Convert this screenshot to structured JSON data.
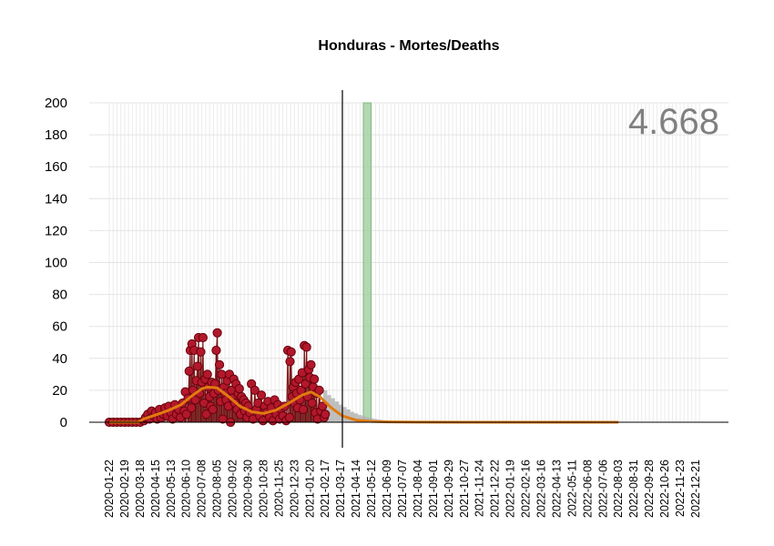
{
  "chart_data": {
    "type": "line",
    "title": "Honduras - Mortes/Deaths",
    "total_label": "4.668",
    "xlabel": "",
    "ylabel": "",
    "ylim": [
      0,
      200
    ],
    "yticks": [
      0,
      20,
      40,
      60,
      80,
      100,
      120,
      140,
      160,
      180,
      200
    ],
    "x_start": "2020-01-22",
    "x_end": "2022-12-31",
    "x_tick_labels": [
      "2020-01-22",
      "2020-02-19",
      "2020-03-18",
      "2020-04-15",
      "2020-05-13",
      "2020-06-10",
      "2020-07-08",
      "2020-08-05",
      "2020-09-02",
      "2020-09-30",
      "2020-10-28",
      "2020-11-25",
      "2020-12-23",
      "2021-01-20",
      "2021-02-17",
      "2021-03-17",
      "2021-04-14",
      "2021-05-12",
      "2021-06-09",
      "2021-07-07",
      "2021-08-04",
      "2021-09-01",
      "2021-09-29",
      "2021-10-27",
      "2021-11-24",
      "2021-12-22",
      "2022-01-19",
      "2022-02-16",
      "2022-03-16",
      "2022-04-13",
      "2022-05-11",
      "2022-06-08",
      "2022-07-06",
      "2022-08-03",
      "2022-08-31",
      "2022-09-28",
      "2022-10-26",
      "2022-11-23",
      "2022-12-21"
    ],
    "grid": true,
    "vertical_line_date": "2021-03-20",
    "highlight_band": [
      "2021-04-27",
      "2021-05-11"
    ],
    "colors": {
      "points": "#b2182b",
      "point_edge": "#67000d",
      "smooth": "#e07b10",
      "forecast": "#b0b0b0",
      "band": "#a7d0a7",
      "vline": "#000000",
      "grid": "#ebebeb",
      "total": "#808080"
    },
    "series": [
      {
        "role": "daily deaths",
        "points": [
          [
            "2020-01-22",
            0
          ],
          [
            "2020-01-29",
            0
          ],
          [
            "2020-02-05",
            0
          ],
          [
            "2020-02-12",
            0
          ],
          [
            "2020-02-19",
            0
          ],
          [
            "2020-02-26",
            0
          ],
          [
            "2020-03-04",
            0
          ],
          [
            "2020-03-11",
            0
          ],
          [
            "2020-03-18",
            0
          ],
          [
            "2020-03-25",
            1
          ],
          [
            "2020-03-28",
            3
          ],
          [
            "2020-04-01",
            5
          ],
          [
            "2020-04-04",
            2
          ],
          [
            "2020-04-08",
            7
          ],
          [
            "2020-04-12",
            4
          ],
          [
            "2020-04-15",
            6
          ],
          [
            "2020-04-18",
            2
          ],
          [
            "2020-04-22",
            8
          ],
          [
            "2020-04-25",
            3
          ],
          [
            "2020-04-29",
            5
          ],
          [
            "2020-05-02",
            9
          ],
          [
            "2020-05-06",
            4
          ],
          [
            "2020-05-09",
            10
          ],
          [
            "2020-05-13",
            6
          ],
          [
            "2020-05-16",
            2
          ],
          [
            "2020-05-20",
            11
          ],
          [
            "2020-05-23",
            5
          ],
          [
            "2020-05-27",
            8
          ],
          [
            "2020-05-30",
            3
          ],
          [
            "2020-06-03",
            12
          ],
          [
            "2020-06-06",
            7
          ],
          [
            "2020-06-08",
            19
          ],
          [
            "2020-06-10",
            5
          ],
          [
            "2020-06-13",
            15
          ],
          [
            "2020-06-15",
            32
          ],
          [
            "2020-06-17",
            45
          ],
          [
            "2020-06-19",
            9
          ],
          [
            "2020-06-20",
            49
          ],
          [
            "2020-06-22",
            20
          ],
          [
            "2020-06-24",
            45
          ],
          [
            "2020-06-26",
            14
          ],
          [
            "2020-06-28",
            26
          ],
          [
            "2020-06-30",
            35
          ],
          [
            "2020-07-02",
            53
          ],
          [
            "2020-07-04",
            18
          ],
          [
            "2020-07-06",
            44
          ],
          [
            "2020-07-08",
            25
          ],
          [
            "2020-07-10",
            53
          ],
          [
            "2020-07-12",
            12
          ],
          [
            "2020-07-14",
            27
          ],
          [
            "2020-07-16",
            5
          ],
          [
            "2020-07-18",
            30
          ],
          [
            "2020-07-20",
            22
          ],
          [
            "2020-07-22",
            16
          ],
          [
            "2020-07-24",
            10
          ],
          [
            "2020-07-26",
            25
          ],
          [
            "2020-07-28",
            8
          ],
          [
            "2020-07-30",
            18
          ],
          [
            "2020-08-01",
            24
          ],
          [
            "2020-08-03",
            45
          ],
          [
            "2020-08-05",
            56
          ],
          [
            "2020-08-07",
            20
          ],
          [
            "2020-08-09",
            36
          ],
          [
            "2020-08-11",
            13
          ],
          [
            "2020-08-13",
            30
          ],
          [
            "2020-08-15",
            2
          ],
          [
            "2020-08-17",
            22
          ],
          [
            "2020-08-19",
            18
          ],
          [
            "2020-08-21",
            14
          ],
          [
            "2020-08-23",
            26
          ],
          [
            "2020-08-25",
            10
          ],
          [
            "2020-08-27",
            30
          ],
          [
            "2020-08-29",
            0
          ],
          [
            "2020-08-31",
            20
          ],
          [
            "2020-09-02",
            15
          ],
          [
            "2020-09-04",
            27
          ],
          [
            "2020-09-06",
            12
          ],
          [
            "2020-09-08",
            24
          ],
          [
            "2020-09-10",
            8
          ],
          [
            "2020-09-12",
            18
          ],
          [
            "2020-09-14",
            21
          ],
          [
            "2020-09-16",
            5
          ],
          [
            "2020-09-18",
            16
          ],
          [
            "2020-09-20",
            10
          ],
          [
            "2020-09-22",
            14
          ],
          [
            "2020-09-24",
            7
          ],
          [
            "2020-09-26",
            12
          ],
          [
            "2020-09-28",
            3
          ],
          [
            "2020-09-30",
            10
          ],
          [
            "2020-10-03",
            6
          ],
          [
            "2020-10-06",
            24
          ],
          [
            "2020-10-09",
            2
          ],
          [
            "2020-10-12",
            20
          ],
          [
            "2020-10-15",
            8
          ],
          [
            "2020-10-18",
            12
          ],
          [
            "2020-10-21",
            4
          ],
          [
            "2020-10-24",
            17
          ],
          [
            "2020-10-27",
            1
          ],
          [
            "2020-10-30",
            10
          ],
          [
            "2020-11-02",
            6
          ],
          [
            "2020-11-05",
            13
          ],
          [
            "2020-11-08",
            3
          ],
          [
            "2020-11-11",
            9
          ],
          [
            "2020-11-14",
            1
          ],
          [
            "2020-11-17",
            14
          ],
          [
            "2020-11-20",
            5
          ],
          [
            "2020-11-23",
            11
          ],
          [
            "2020-11-26",
            2
          ],
          [
            "2020-11-29",
            8
          ],
          [
            "2020-12-02",
            4
          ],
          [
            "2020-12-05",
            10
          ],
          [
            "2020-12-08",
            1
          ],
          [
            "2020-12-11",
            45
          ],
          [
            "2020-12-14",
            3
          ],
          [
            "2020-12-15",
            38
          ],
          [
            "2020-12-17",
            44
          ],
          [
            "2020-12-19",
            16
          ],
          [
            "2020-12-21",
            22
          ],
          [
            "2020-12-23",
            12
          ],
          [
            "2020-12-25",
            25
          ],
          [
            "2020-12-27",
            18
          ],
          [
            "2020-12-29",
            9
          ],
          [
            "2020-12-31",
            27
          ],
          [
            "2021-01-02",
            14
          ],
          [
            "2021-01-04",
            20
          ],
          [
            "2021-01-06",
            31
          ],
          [
            "2021-01-08",
            8
          ],
          [
            "2021-01-10",
            48
          ],
          [
            "2021-01-12",
            24
          ],
          [
            "2021-01-14",
            47
          ],
          [
            "2021-01-16",
            16
          ],
          [
            "2021-01-18",
            33
          ],
          [
            "2021-01-20",
            28
          ],
          [
            "2021-01-22",
            36
          ],
          [
            "2021-01-24",
            12
          ],
          [
            "2021-01-26",
            22
          ],
          [
            "2021-01-28",
            27
          ],
          [
            "2021-01-30",
            6
          ],
          [
            "2021-02-01",
            18
          ],
          [
            "2021-02-03",
            2
          ],
          [
            "2021-02-06",
            20
          ],
          [
            "2021-02-09",
            7
          ],
          [
            "2021-02-12",
            10
          ],
          [
            "2021-02-15",
            3
          ],
          [
            "2021-02-17",
            5
          ]
        ]
      },
      {
        "role": "smoothed",
        "points": [
          [
            "2020-01-22",
            0
          ],
          [
            "2020-03-15",
            0
          ],
          [
            "2020-03-24",
            2
          ],
          [
            "2020-04-19",
            5
          ],
          [
            "2020-05-09",
            7.5
          ],
          [
            "2020-05-31",
            11
          ],
          [
            "2020-06-20",
            16.5
          ],
          [
            "2020-07-08",
            21
          ],
          [
            "2020-07-18",
            22
          ],
          [
            "2020-08-05",
            21.5
          ],
          [
            "2020-08-26",
            16
          ],
          [
            "2020-09-15",
            10
          ],
          [
            "2020-10-07",
            6.5
          ],
          [
            "2020-10-28",
            5.5
          ],
          [
            "2020-11-19",
            7.5
          ],
          [
            "2020-12-13",
            12
          ],
          [
            "2021-01-06",
            17
          ],
          [
            "2021-01-22",
            19
          ],
          [
            "2021-02-07",
            16
          ],
          [
            "2021-02-28",
            9
          ],
          [
            "2021-03-20",
            4
          ],
          [
            "2021-04-14",
            1.3
          ],
          [
            "2021-05-12",
            0.5
          ],
          [
            "2021-06-09",
            0.2
          ],
          [
            "2021-08-04",
            0.05
          ],
          [
            "2022-01-19",
            0
          ],
          [
            "2022-08-03",
            0
          ]
        ]
      },
      {
        "role": "projection",
        "points": [
          [
            "2021-02-17",
            20
          ],
          [
            "2021-02-24",
            17
          ],
          [
            "2021-03-03",
            15
          ],
          [
            "2021-03-10",
            13
          ],
          [
            "2021-03-17",
            11
          ],
          [
            "2021-03-24",
            9.5
          ],
          [
            "2021-03-31",
            8
          ],
          [
            "2021-04-07",
            6.5
          ],
          [
            "2021-04-14",
            5.5
          ],
          [
            "2021-04-21",
            4.5
          ],
          [
            "2021-04-28",
            3.7
          ],
          [
            "2021-05-05",
            3
          ],
          [
            "2021-05-12",
            2.5
          ],
          [
            "2021-05-19",
            2
          ],
          [
            "2021-05-26",
            1.6
          ],
          [
            "2021-06-02",
            1.3
          ],
          [
            "2021-06-09",
            1
          ],
          [
            "2021-06-16",
            0.8
          ],
          [
            "2021-06-23",
            0.6
          ],
          [
            "2021-06-30",
            0.5
          ],
          [
            "2021-07-07",
            0.3
          ]
        ]
      }
    ]
  }
}
